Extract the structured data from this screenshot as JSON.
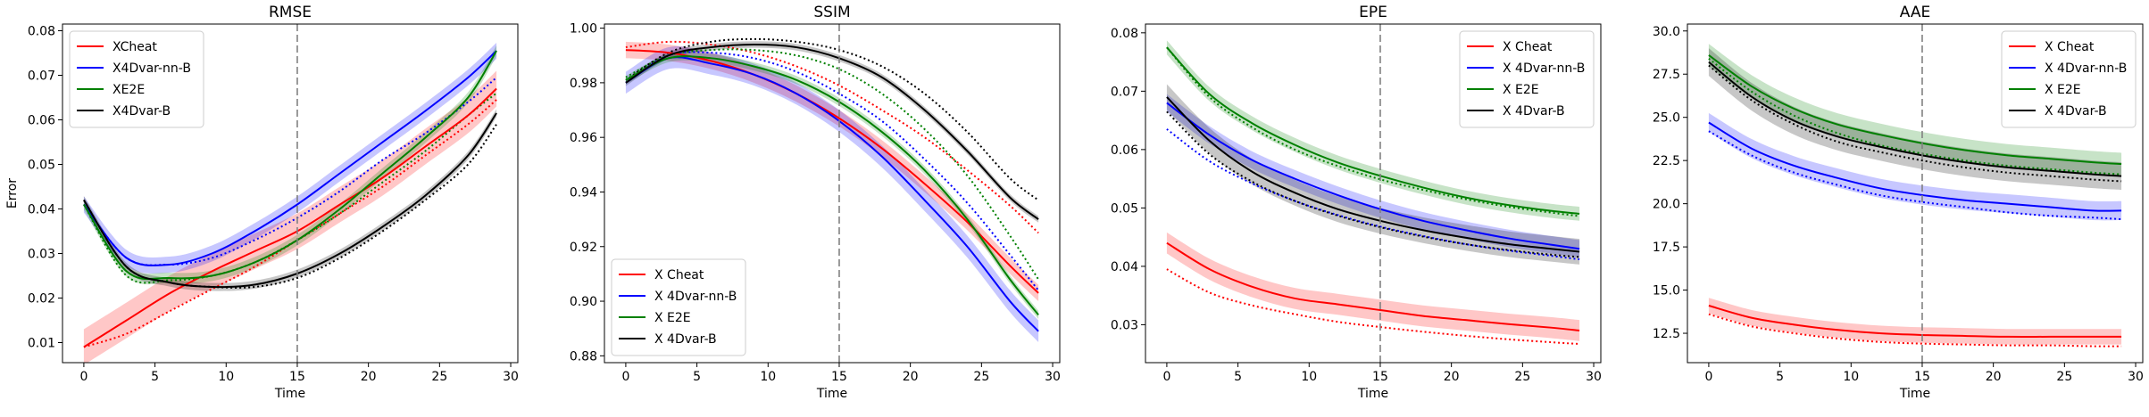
{
  "chart_data": [
    {
      "type": "line",
      "title": "RMSE",
      "xlabel": "Time",
      "ylabel": "Error",
      "xlim": [
        -1.5,
        30.5
      ],
      "ylim": [
        0.0055,
        0.0815
      ],
      "xticks": [
        "0",
        "5",
        "10",
        "15",
        "20",
        "25",
        "30"
      ],
      "yticks": [
        "0.01",
        "0.02",
        "0.03",
        "0.04",
        "0.05",
        "0.06",
        "0.07",
        "0.08"
      ],
      "vline_x": 15,
      "legend_position": "upper left",
      "x": [
        0,
        3,
        6,
        9,
        12,
        15,
        18,
        21,
        24,
        27,
        29
      ],
      "series": [
        {
          "name": "XCheat",
          "color": "#ff0000",
          "values": [
            0.009,
            0.015,
            0.021,
            0.026,
            0.0305,
            0.035,
            0.041,
            0.047,
            0.054,
            0.061,
            0.067
          ],
          "band": 0.004,
          "dotted": [
            0.009,
            0.012,
            0.017,
            0.022,
            0.027,
            0.033,
            0.039,
            0.045,
            0.052,
            0.059,
            0.0645
          ]
        },
        {
          "name": "X4Dvar-nn-B",
          "color": "#0000ff",
          "values": [
            0.041,
            0.029,
            0.0275,
            0.03,
            0.035,
            0.041,
            0.048,
            0.055,
            0.062,
            0.0695,
            0.0755
          ],
          "band": 0.0018,
          "dotted": [
            0.041,
            0.029,
            0.0275,
            0.029,
            0.033,
            0.038,
            0.044,
            0.051,
            0.057,
            0.064,
            0.0695
          ]
        },
        {
          "name": "XE2E",
          "color": "#008000",
          "values": [
            0.041,
            0.026,
            0.0245,
            0.025,
            0.028,
            0.033,
            0.04,
            0.048,
            0.056,
            0.065,
            0.0755
          ],
          "band": 0.0012,
          "dotted": [
            0.041,
            0.025,
            0.024,
            0.025,
            0.028,
            0.033,
            0.039,
            0.046,
            0.053,
            0.061,
            0.066
          ]
        },
        {
          "name": "X4Dvar-B",
          "color": "#000000",
          "values": [
            0.042,
            0.027,
            0.0235,
            0.0225,
            0.023,
            0.0255,
            0.03,
            0.036,
            0.043,
            0.052,
            0.0615
          ],
          "band": 0.0009,
          "dotted": [
            0.042,
            0.027,
            0.0235,
            0.0225,
            0.0225,
            0.0245,
            0.029,
            0.035,
            0.042,
            0.05,
            0.059
          ]
        }
      ]
    },
    {
      "type": "line",
      "title": "SSIM",
      "xlabel": "Time",
      "ylabel": "",
      "xlim": [
        -1.5,
        30.5
      ],
      "ylim": [
        0.8775,
        1.0015
      ],
      "xticks": [
        "0",
        "5",
        "10",
        "15",
        "20",
        "25",
        "30"
      ],
      "yticks": [
        "0.88",
        "0.90",
        "0.92",
        "0.94",
        "0.96",
        "0.98",
        "1.00"
      ],
      "vline_x": 15,
      "legend_position": "lower left",
      "x": [
        0,
        3,
        6,
        9,
        12,
        15,
        18,
        21,
        24,
        27,
        29
      ],
      "series": [
        {
          "name": "X Cheat",
          "color": "#ff0000",
          "values": [
            0.992,
            0.991,
            0.988,
            0.983,
            0.976,
            0.967,
            0.956,
            0.943,
            0.929,
            0.913,
            0.903
          ],
          "band": 0.003,
          "dotted": [
            0.993,
            0.995,
            0.994,
            0.991,
            0.986,
            0.979,
            0.97,
            0.96,
            0.948,
            0.935,
            0.925
          ]
        },
        {
          "name": "X 4Dvar-nn-B",
          "color": "#0000ff",
          "values": [
            0.98,
            0.989,
            0.987,
            0.983,
            0.976,
            0.966,
            0.953,
            0.937,
            0.92,
            0.9,
            0.889
          ],
          "band": 0.004,
          "dotted": [
            0.98,
            0.99,
            0.991,
            0.989,
            0.984,
            0.976,
            0.966,
            0.952,
            0.936,
            0.917,
            0.904
          ]
        },
        {
          "name": "X E2E",
          "color": "#008000",
          "values": [
            0.981,
            0.989,
            0.989,
            0.986,
            0.981,
            0.973,
            0.962,
            0.948,
            0.93,
            0.908,
            0.895
          ],
          "band": 0.0015,
          "dotted": [
            0.982,
            0.99,
            0.992,
            0.992,
            0.99,
            0.985,
            0.976,
            0.963,
            0.946,
            0.924,
            0.908
          ]
        },
        {
          "name": "X 4Dvar-B",
          "color": "#000000",
          "values": [
            0.98,
            0.99,
            0.993,
            0.994,
            0.993,
            0.989,
            0.982,
            0.97,
            0.955,
            0.938,
            0.93
          ],
          "band": 0.0012,
          "dotted": [
            0.981,
            0.991,
            0.995,
            0.996,
            0.995,
            0.992,
            0.986,
            0.976,
            0.962,
            0.945,
            0.937
          ]
        }
      ]
    },
    {
      "type": "line",
      "title": "EPE",
      "xlabel": "Time",
      "ylabel": "",
      "xlim": [
        -1.5,
        30.5
      ],
      "ylim": [
        0.0235,
        0.0815
      ],
      "xticks": [
        "0",
        "5",
        "10",
        "15",
        "20",
        "25",
        "30"
      ],
      "yticks": [
        "0.03",
        "0.04",
        "0.05",
        "0.06",
        "0.07",
        "0.08"
      ],
      "vline_x": 15,
      "legend_position": "upper right",
      "x": [
        0,
        3,
        6,
        9,
        12,
        15,
        18,
        21,
        24,
        27,
        29
      ],
      "series": [
        {
          "name": "X Cheat",
          "color": "#ff0000",
          "values": [
            0.044,
            0.0395,
            0.0365,
            0.0345,
            0.0335,
            0.0325,
            0.0315,
            0.0308,
            0.0301,
            0.0295,
            0.029
          ],
          "band": 0.0018,
          "dotted": [
            0.0395,
            0.0355,
            0.0333,
            0.0318,
            0.0305,
            0.0296,
            0.0288,
            0.0281,
            0.0275,
            0.027,
            0.0267
          ]
        },
        {
          "name": "X 4Dvar-nn-B",
          "color": "#0000ff",
          "values": [
            0.068,
            0.0625,
            0.0582,
            0.055,
            0.0522,
            0.0498,
            0.0478,
            0.0462,
            0.0448,
            0.0437,
            0.043
          ],
          "band": 0.0015,
          "dotted": [
            0.0635,
            0.058,
            0.0542,
            0.0512,
            0.0488,
            0.0468,
            0.0452,
            0.0438,
            0.0427,
            0.0418,
            0.0412
          ]
        },
        {
          "name": "X E2E",
          "color": "#008000",
          "values": [
            0.0775,
            0.0695,
            0.0645,
            0.0608,
            0.0578,
            0.0555,
            0.0535,
            0.0518,
            0.0505,
            0.0495,
            0.049
          ],
          "band": 0.0012,
          "dotted": [
            0.0775,
            0.069,
            0.0638,
            0.06,
            0.0572,
            0.0549,
            0.0531,
            0.0515,
            0.0502,
            0.0492,
            0.0486
          ]
        },
        {
          "name": "X 4Dvar-B",
          "color": "#000000",
          "values": [
            0.069,
            0.0615,
            0.0562,
            0.0526,
            0.0498,
            0.0478,
            0.0462,
            0.0449,
            0.0438,
            0.043,
            0.0425
          ],
          "band": 0.0022,
          "dotted": [
            0.0665,
            0.0592,
            0.0545,
            0.0512,
            0.0487,
            0.0467,
            0.0451,
            0.0438,
            0.0428,
            0.042,
            0.0416
          ]
        }
      ]
    },
    {
      "type": "line",
      "title": "AAE",
      "xlabel": "Time",
      "ylabel": "",
      "xlim": [
        -1.5,
        30.5
      ],
      "ylim": [
        10.8,
        30.4
      ],
      "xticks": [
        "0",
        "5",
        "10",
        "15",
        "20",
        "25",
        "30"
      ],
      "yticks": [
        "12.5",
        "15.0",
        "17.5",
        "20.0",
        "22.5",
        "25.0",
        "27.5",
        "30.0"
      ],
      "vline_x": 15,
      "legend_position": "upper right",
      "x": [
        0,
        3,
        6,
        9,
        12,
        15,
        18,
        21,
        24,
        27,
        29
      ],
      "series": [
        {
          "name": "X Cheat",
          "color": "#ff0000",
          "values": [
            14.1,
            13.4,
            13.0,
            12.7,
            12.5,
            12.4,
            12.35,
            12.3,
            12.3,
            12.3,
            12.3
          ],
          "band": 0.45,
          "dotted": [
            13.6,
            12.9,
            12.5,
            12.2,
            12.0,
            11.9,
            11.85,
            11.8,
            11.8,
            11.75,
            11.75
          ]
        },
        {
          "name": "X 4Dvar-nn-B",
          "color": "#0000ff",
          "values": [
            24.7,
            23.2,
            22.2,
            21.5,
            20.9,
            20.5,
            20.2,
            20.0,
            19.8,
            19.6,
            19.6
          ],
          "band": 0.55,
          "dotted": [
            24.2,
            22.8,
            21.8,
            21.1,
            20.5,
            20.1,
            19.8,
            19.5,
            19.3,
            19.2,
            19.1
          ]
        },
        {
          "name": "X E2E",
          "color": "#008000",
          "values": [
            28.6,
            26.8,
            25.5,
            24.6,
            24.0,
            23.5,
            23.1,
            22.8,
            22.6,
            22.4,
            22.3
          ],
          "band": 0.65,
          "dotted": [
            28.4,
            26.5,
            25.1,
            24.1,
            23.4,
            22.9,
            22.5,
            22.2,
            22.0,
            21.8,
            21.7
          ]
        },
        {
          "name": "X 4Dvar-B",
          "color": "#000000",
          "values": [
            28.2,
            26.2,
            24.8,
            23.9,
            23.3,
            22.8,
            22.4,
            22.1,
            21.9,
            21.7,
            21.6
          ],
          "band": 0.8,
          "dotted": [
            28.0,
            26.0,
            24.6,
            23.6,
            23.0,
            22.5,
            22.1,
            21.8,
            21.6,
            21.4,
            21.3
          ]
        }
      ]
    }
  ]
}
